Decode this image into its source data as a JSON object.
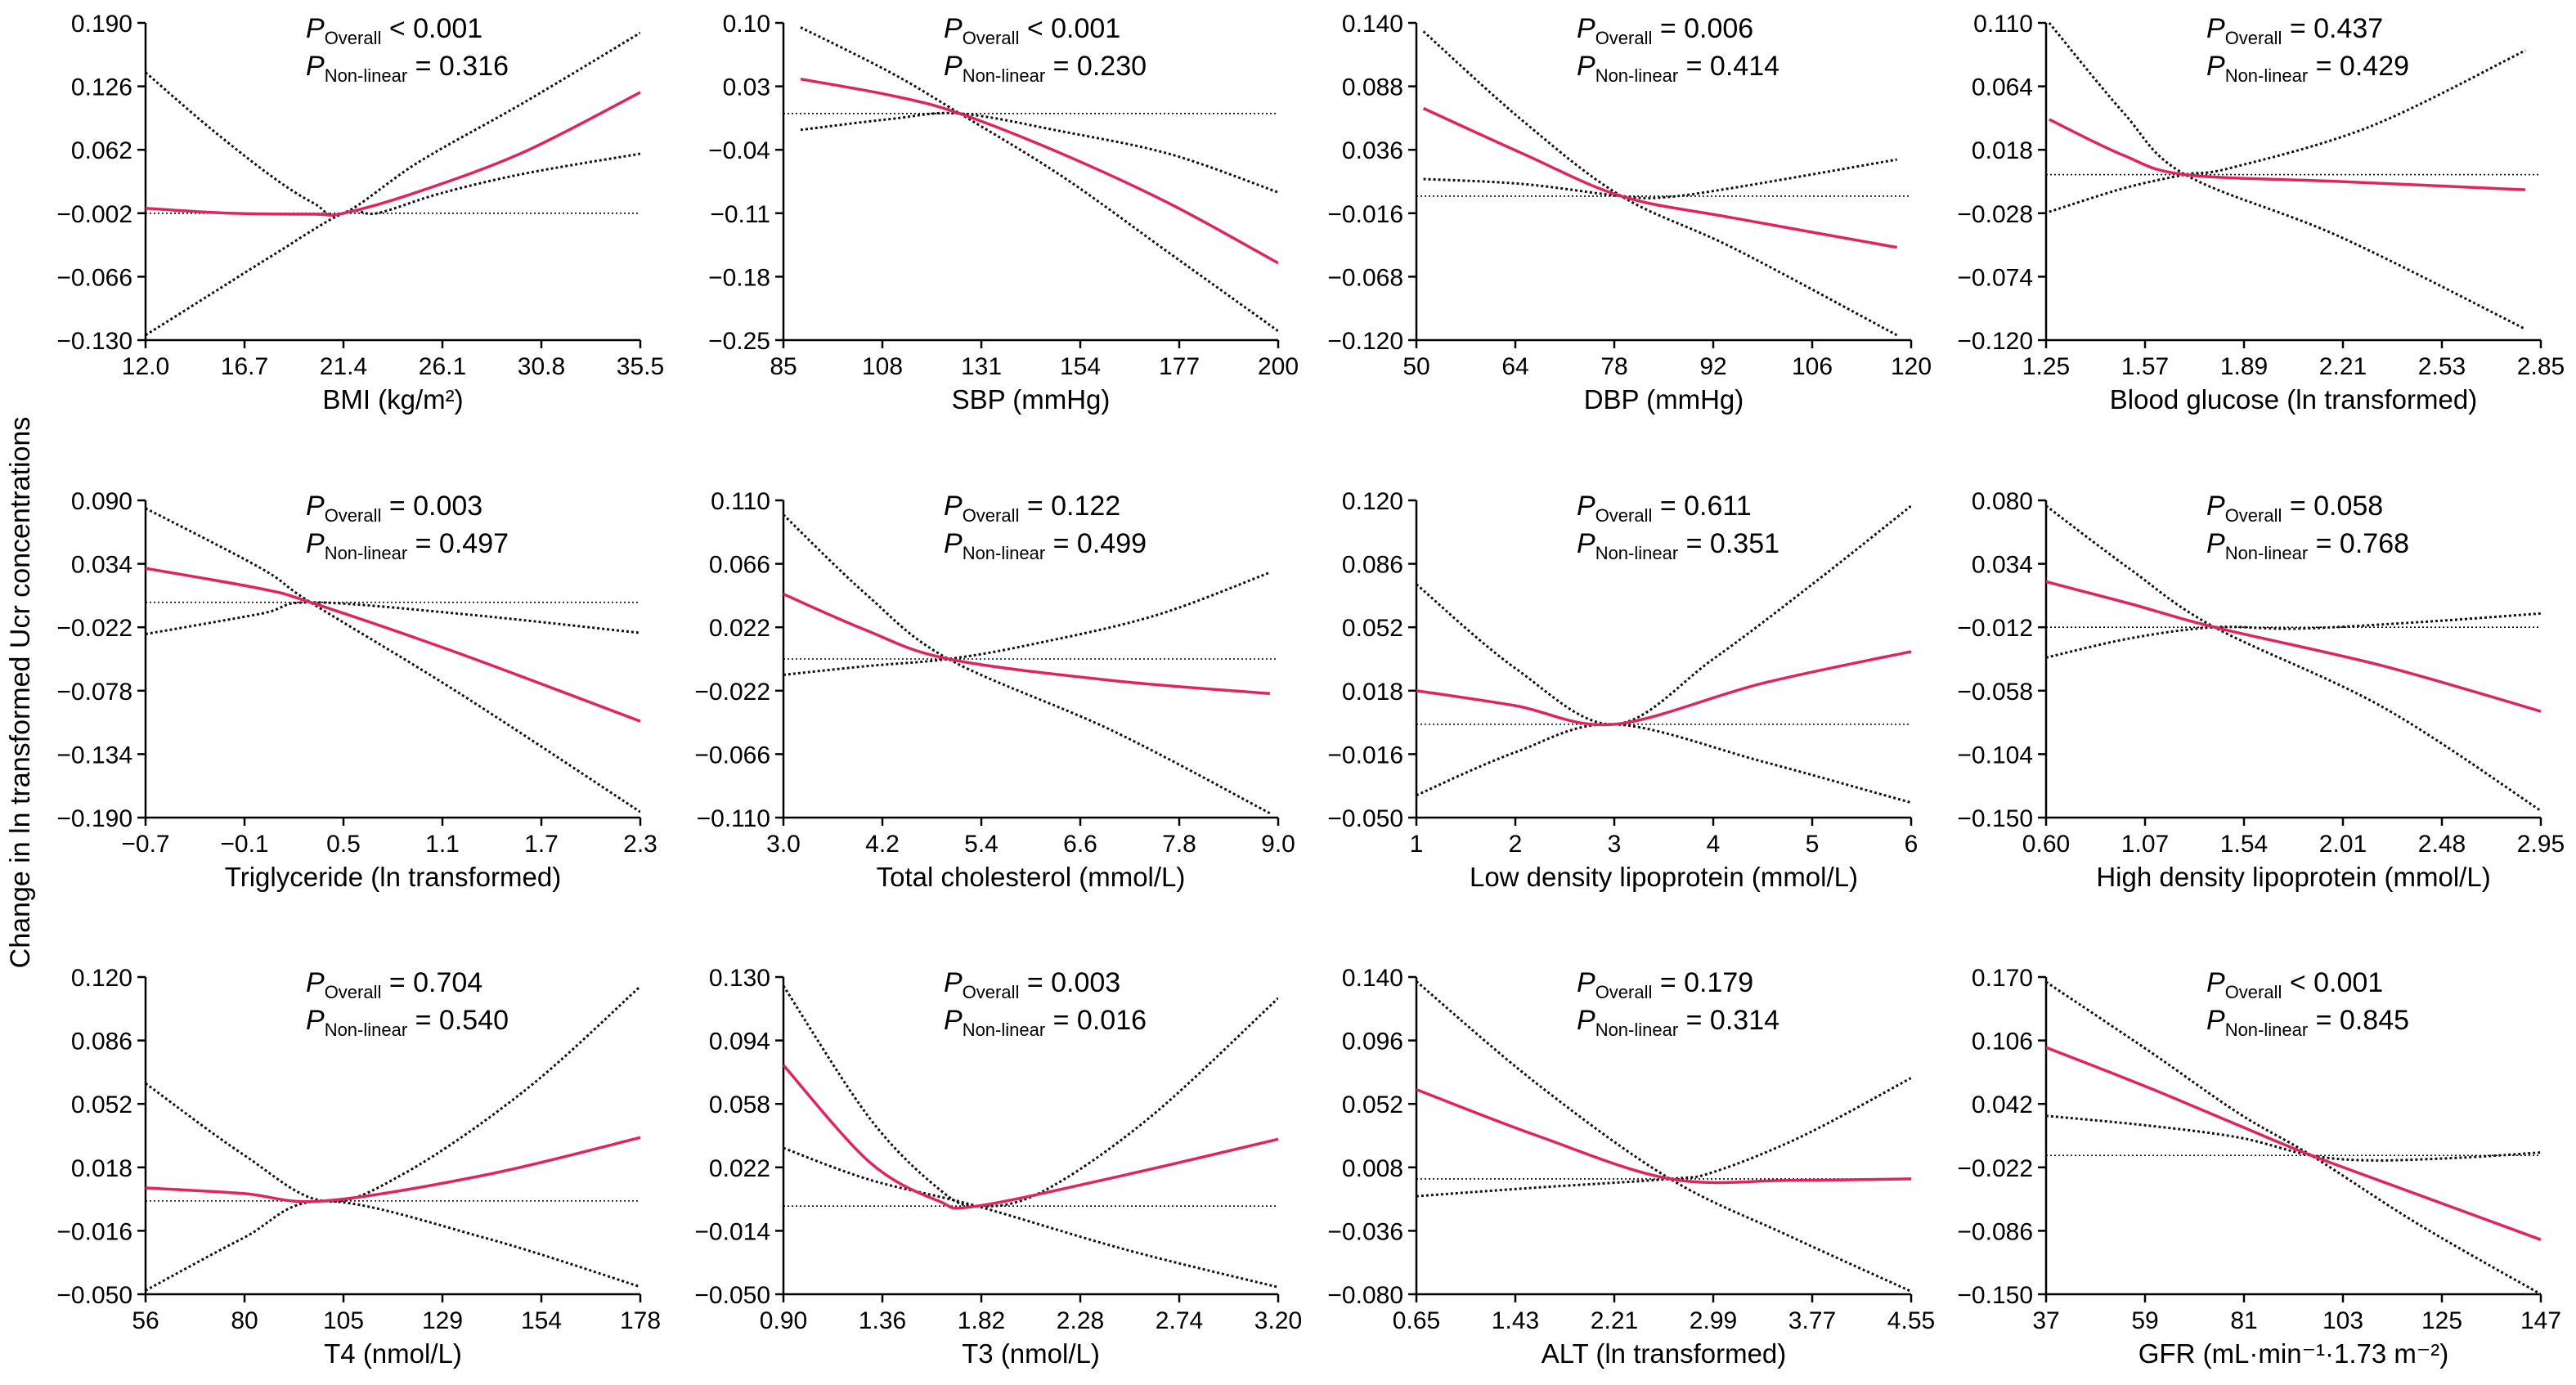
{
  "figure": {
    "ylabel": "Change in ln transformed Ucr concentrations"
  },
  "chart_data": [
    {
      "type": "line",
      "xlabel": "BMI (kg/m²)",
      "xticks": [
        "12.0",
        "16.7",
        "21.4",
        "26.1",
        "30.8",
        "35.5"
      ],
      "xlim": [
        12.0,
        35.5
      ],
      "yticks": [
        "0.190",
        "0.126",
        "0.062",
        "−0.002",
        "−0.066",
        "−0.130"
      ],
      "ylim": [
        -0.13,
        0.19
      ],
      "ref_y": -0.002,
      "p_overall": "< 0.001",
      "p_nonlinear": "= 0.316",
      "curves": {
        "estimate": [
          [
            12,
            0.003
          ],
          [
            16,
            -0.002
          ],
          [
            20,
            -0.003
          ],
          [
            21.4,
            -0.002
          ],
          [
            25,
            0.02
          ],
          [
            30,
            0.06
          ],
          [
            35.5,
            0.12
          ]
        ],
        "ci_upper": [
          [
            12,
            0.14
          ],
          [
            15,
            0.085
          ],
          [
            18,
            0.035
          ],
          [
            20,
            0.008
          ],
          [
            21.4,
            -0.002
          ],
          [
            25,
            0.05
          ],
          [
            30,
            0.11
          ],
          [
            35.5,
            0.18
          ]
        ],
        "ci_lower": [
          [
            12,
            -0.125
          ],
          [
            15,
            -0.085
          ],
          [
            18,
            -0.045
          ],
          [
            21.4,
            -0.002
          ],
          [
            23,
            -0.002
          ],
          [
            26,
            0.018
          ],
          [
            30,
            0.038
          ],
          [
            35.5,
            0.058
          ]
        ]
      }
    },
    {
      "type": "line",
      "xlabel": "SBP (mmHg)",
      "xticks": [
        "85",
        "108",
        "131",
        "154",
        "177",
        "200"
      ],
      "xlim": [
        85,
        200
      ],
      "yticks": [
        "0.10",
        "0.03",
        "−0.04",
        "−0.11",
        "−0.18",
        "−0.25"
      ],
      "ylim": [
        -0.25,
        0.1
      ],
      "ref_y": 0.0,
      "p_overall": "< 0.001",
      "p_nonlinear": "= 0.230",
      "curves": {
        "estimate": [
          [
            89,
            0.038
          ],
          [
            110,
            0.02
          ],
          [
            126,
            0.0
          ],
          [
            150,
            -0.045
          ],
          [
            175,
            -0.1
          ],
          [
            200,
            -0.165
          ]
        ],
        "ci_upper": [
          [
            89,
            -0.018
          ],
          [
            110,
            -0.006
          ],
          [
            126,
            0.0
          ],
          [
            150,
            -0.02
          ],
          [
            175,
            -0.045
          ],
          [
            200,
            -0.087
          ]
        ],
        "ci_lower": [
          [
            89,
            0.095
          ],
          [
            110,
            0.045
          ],
          [
            126,
            0.0
          ],
          [
            150,
            -0.07
          ],
          [
            175,
            -0.155
          ],
          [
            200,
            -0.24
          ]
        ]
      }
    },
    {
      "type": "line",
      "xlabel": "DBP (mmHg)",
      "xticks": [
        "50",
        "64",
        "78",
        "92",
        "106",
        "120"
      ],
      "xlim": [
        50,
        120
      ],
      "yticks": [
        "0.140",
        "0.088",
        "0.036",
        "−0.016",
        "−0.068",
        "−0.120"
      ],
      "ylim": [
        -0.12,
        0.14
      ],
      "ref_y": -0.002,
      "p_overall": "= 0.006",
      "p_nonlinear": "= 0.414",
      "curves": {
        "estimate": [
          [
            51,
            0.07
          ],
          [
            65,
            0.033
          ],
          [
            79,
            -0.002
          ],
          [
            95,
            -0.02
          ],
          [
            118,
            -0.044
          ]
        ],
        "ci_upper": [
          [
            51,
            0.012
          ],
          [
            65,
            0.008
          ],
          [
            79,
            -0.002
          ],
          [
            85,
            -0.003
          ],
          [
            95,
            0.005
          ],
          [
            118,
            0.028
          ]
        ],
        "ci_lower": [
          [
            51,
            0.133
          ],
          [
            65,
            0.06
          ],
          [
            79,
            -0.002
          ],
          [
            95,
            -0.045
          ],
          [
            118,
            -0.116
          ]
        ]
      }
    },
    {
      "type": "line",
      "xlabel": "Blood glucose (ln transformed)",
      "xticks": [
        "1.25",
        "1.57",
        "1.89",
        "2.21",
        "2.53",
        "2.85"
      ],
      "xlim": [
        1.25,
        2.85
      ],
      "yticks": [
        "0.110",
        "0.064",
        "0.018",
        "−0.028",
        "−0.074",
        "−0.120"
      ],
      "ylim": [
        -0.12,
        0.11
      ],
      "ref_y": 0.0,
      "p_overall": "= 0.437",
      "p_nonlinear": "= 0.429",
      "curves": {
        "estimate": [
          [
            1.26,
            0.04
          ],
          [
            1.5,
            0.014
          ],
          [
            1.7,
            0.0
          ],
          [
            2.2,
            -0.005
          ],
          [
            2.8,
            -0.011
          ]
        ],
        "ci_upper": [
          [
            1.26,
            -0.027
          ],
          [
            1.5,
            -0.01
          ],
          [
            1.7,
            0.0
          ],
          [
            1.85,
            0.005
          ],
          [
            2.3,
            0.035
          ],
          [
            2.8,
            0.09
          ]
        ],
        "ci_lower": [
          [
            1.26,
            0.11
          ],
          [
            1.5,
            0.045
          ],
          [
            1.7,
            0.0
          ],
          [
            2.2,
            -0.045
          ],
          [
            2.8,
            -0.112
          ]
        ]
      }
    },
    {
      "type": "line",
      "xlabel": "Triglyceride (ln transformed)",
      "xticks": [
        "−0.7",
        "−0.1",
        "0.5",
        "1.1",
        "1.7",
        "2.3"
      ],
      "xlim": [
        -0.7,
        2.3
      ],
      "yticks": [
        "0.090",
        "0.034",
        "−0.022",
        "−0.078",
        "−0.134",
        "−0.190"
      ],
      "ylim": [
        -0.19,
        0.09
      ],
      "ref_y": 0.0,
      "p_overall": "= 0.003",
      "p_nonlinear": "= 0.497",
      "curves": {
        "estimate": [
          [
            -0.7,
            0.03
          ],
          [
            0.0,
            0.012
          ],
          [
            0.3,
            0.0
          ],
          [
            1.2,
            -0.045
          ],
          [
            2.3,
            -0.105
          ]
        ],
        "ci_upper": [
          [
            -0.7,
            -0.028
          ],
          [
            0.0,
            -0.01
          ],
          [
            0.3,
            0.0
          ],
          [
            1.2,
            -0.01
          ],
          [
            2.3,
            -0.027
          ]
        ],
        "ci_lower": [
          [
            -0.7,
            0.083
          ],
          [
            0.0,
            0.03
          ],
          [
            0.3,
            0.0
          ],
          [
            1.2,
            -0.08
          ],
          [
            2.3,
            -0.185
          ]
        ]
      }
    },
    {
      "type": "line",
      "xlabel": "Total cholesterol (mmol/L)",
      "xticks": [
        "3.0",
        "4.2",
        "5.4",
        "6.6",
        "7.8",
        "9.0"
      ],
      "xlim": [
        3.0,
        9.0
      ],
      "yticks": [
        "0.110",
        "0.066",
        "0.022",
        "−0.022",
        "−0.066",
        "−0.110"
      ],
      "ylim": [
        -0.11,
        0.11
      ],
      "ref_y": 0.0,
      "p_overall": "= 0.122",
      "p_nonlinear": "= 0.499",
      "curves": {
        "estimate": [
          [
            3.0,
            0.045
          ],
          [
            4.0,
            0.02
          ],
          [
            5.0,
            0.0
          ],
          [
            7.0,
            -0.015
          ],
          [
            8.9,
            -0.024
          ]
        ],
        "ci_upper": [
          [
            3.0,
            -0.011
          ],
          [
            4.0,
            -0.005
          ],
          [
            5.0,
            0.0
          ],
          [
            6.0,
            0.01
          ],
          [
            7.5,
            0.03
          ],
          [
            8.9,
            0.06
          ]
        ],
        "ci_lower": [
          [
            3.0,
            0.1
          ],
          [
            4.0,
            0.045
          ],
          [
            5.0,
            0.0
          ],
          [
            7.0,
            -0.05
          ],
          [
            8.9,
            -0.107
          ]
        ]
      }
    },
    {
      "type": "line",
      "xlabel": "Low density lipoprotein (mmol/L)",
      "xticks": [
        "1",
        "2",
        "3",
        "4",
        "5",
        "6"
      ],
      "xlim": [
        1,
        6
      ],
      "yticks": [
        "0.120",
        "0.086",
        "0.052",
        "0.018",
        "−0.016",
        "−0.050"
      ],
      "ylim": [
        -0.05,
        0.12
      ],
      "ref_y": 0.0,
      "p_overall": "= 0.611",
      "p_nonlinear": "= 0.351",
      "curves": {
        "estimate": [
          [
            1.0,
            0.018
          ],
          [
            2.0,
            0.01
          ],
          [
            3.0,
            0.0
          ],
          [
            4.5,
            0.022
          ],
          [
            6.0,
            0.039
          ]
        ],
        "ci_upper": [
          [
            1.0,
            0.075
          ],
          [
            2.0,
            0.03
          ],
          [
            3.0,
            0.0
          ],
          [
            4.0,
            0.035
          ],
          [
            5.0,
            0.075
          ],
          [
            6.0,
            0.117
          ]
        ],
        "ci_lower": [
          [
            1.0,
            -0.038
          ],
          [
            2.0,
            -0.015
          ],
          [
            3.0,
            0.0
          ],
          [
            4.5,
            -0.02
          ],
          [
            6.0,
            -0.042
          ]
        ]
      }
    },
    {
      "type": "line",
      "xlabel": "High density lipoprotein (mmol/L)",
      "xticks": [
        "0.60",
        "1.07",
        "1.54",
        "2.01",
        "2.48",
        "2.95"
      ],
      "xlim": [
        0.6,
        2.95
      ],
      "yticks": [
        "0.080",
        "0.034",
        "−0.012",
        "−0.058",
        "−0.104",
        "−0.150"
      ],
      "ylim": [
        -0.15,
        0.08
      ],
      "ref_y": -0.012,
      "p_overall": "= 0.058",
      "p_nonlinear": "= 0.768",
      "curves": {
        "estimate": [
          [
            0.6,
            0.021
          ],
          [
            1.0,
            0.005
          ],
          [
            1.4,
            -0.012
          ],
          [
            2.2,
            -0.04
          ],
          [
            2.95,
            -0.073
          ]
        ],
        "ci_upper": [
          [
            0.6,
            -0.034
          ],
          [
            1.0,
            -0.02
          ],
          [
            1.4,
            -0.012
          ],
          [
            1.8,
            -0.013
          ],
          [
            2.4,
            -0.008
          ],
          [
            2.95,
            -0.002
          ]
        ],
        "ci_lower": [
          [
            0.6,
            0.076
          ],
          [
            1.0,
            0.03
          ],
          [
            1.4,
            -0.012
          ],
          [
            2.2,
            -0.07
          ],
          [
            2.95,
            -0.145
          ]
        ]
      }
    },
    {
      "type": "line",
      "xlabel": "T4 (nmol/L)",
      "xticks": [
        "56",
        "80",
        "105",
        "129",
        "154",
        "178"
      ],
      "xlim": [
        56,
        178
      ],
      "yticks": [
        "0.120",
        "0.086",
        "0.052",
        "0.018",
        "−0.016",
        "−0.050"
      ],
      "ylim": [
        -0.05,
        0.12
      ],
      "ref_y": 0.0,
      "p_overall": "= 0.704",
      "p_nonlinear": "= 0.540",
      "curves": {
        "estimate": [
          [
            56,
            0.007
          ],
          [
            80,
            0.004
          ],
          [
            100,
            0.0
          ],
          [
            140,
            0.014
          ],
          [
            178,
            0.034
          ]
        ],
        "ci_upper": [
          [
            56,
            0.063
          ],
          [
            80,
            0.025
          ],
          [
            100,
            0.0
          ],
          [
            120,
            0.015
          ],
          [
            150,
            0.06
          ],
          [
            178,
            0.115
          ]
        ],
        "ci_lower": [
          [
            56,
            -0.048
          ],
          [
            80,
            -0.02
          ],
          [
            100,
            0.0
          ],
          [
            140,
            -0.02
          ],
          [
            178,
            -0.046
          ]
        ]
      }
    },
    {
      "type": "line",
      "xlabel": "T3 (nmol/L)",
      "xticks": [
        "0.90",
        "1.36",
        "1.82",
        "2.28",
        "2.74",
        "3.20"
      ],
      "xlim": [
        0.9,
        3.2
      ],
      "yticks": [
        "0.130",
        "0.094",
        "0.058",
        "0.022",
        "−0.014",
        "−0.050"
      ],
      "ylim": [
        -0.05,
        0.13
      ],
      "ref_y": 0.0,
      "p_overall": "= 0.003",
      "p_nonlinear": "= 0.016",
      "curves": {
        "estimate": [
          [
            0.9,
            0.08
          ],
          [
            1.3,
            0.025
          ],
          [
            1.62,
            0.003
          ],
          [
            1.8,
            0.0
          ],
          [
            2.5,
            0.018
          ],
          [
            3.2,
            0.038
          ]
        ],
        "ci_upper": [
          [
            0.9,
            0.125
          ],
          [
            1.3,
            0.05
          ],
          [
            1.62,
            0.01
          ],
          [
            1.8,
            0.0
          ],
          [
            2.1,
            0.008
          ],
          [
            2.6,
            0.05
          ],
          [
            3.2,
            0.118
          ]
        ],
        "ci_lower": [
          [
            0.9,
            0.033
          ],
          [
            1.3,
            0.015
          ],
          [
            1.8,
            0.0
          ],
          [
            2.5,
            -0.025
          ],
          [
            3.2,
            -0.046
          ]
        ]
      }
    },
    {
      "type": "line",
      "xlabel": "ALT (ln transformed)",
      "xticks": [
        "0.65",
        "1.43",
        "2.21",
        "2.99",
        "3.77",
        "4.55"
      ],
      "xlim": [
        0.65,
        4.55
      ],
      "yticks": [
        "0.140",
        "0.096",
        "0.052",
        "0.008",
        "−0.036",
        "−0.080"
      ],
      "ylim": [
        -0.08,
        0.14
      ],
      "ref_y": 0.0,
      "p_overall": "= 0.179",
      "p_nonlinear": "= 0.314",
      "curves": {
        "estimate": [
          [
            0.65,
            0.062
          ],
          [
            1.6,
            0.03
          ],
          [
            2.65,
            0.0
          ],
          [
            3.6,
            -0.001
          ],
          [
            4.55,
            0.0
          ]
        ],
        "ci_upper": [
          [
            0.65,
            -0.012
          ],
          [
            1.6,
            -0.006
          ],
          [
            2.65,
            0.0
          ],
          [
            3.0,
            0.005
          ],
          [
            3.7,
            0.03
          ],
          [
            4.55,
            0.07
          ]
        ],
        "ci_lower": [
          [
            0.65,
            0.137
          ],
          [
            1.6,
            0.066
          ],
          [
            2.65,
            0.0
          ],
          [
            3.6,
            -0.04
          ],
          [
            4.55,
            -0.078
          ]
        ]
      }
    },
    {
      "type": "line",
      "xlabel": "GFR (mL·min⁻¹·1.73 m⁻²)",
      "xticks": [
        "37",
        "59",
        "81",
        "103",
        "125",
        "147"
      ],
      "xlim": [
        37,
        147
      ],
      "yticks": [
        "0.170",
        "0.106",
        "0.042",
        "−0.022",
        "−0.086",
        "−0.150"
      ],
      "ylim": [
        -0.15,
        0.17
      ],
      "ref_y": -0.01,
      "p_overall": "< 0.001",
      "p_nonlinear": "= 0.845",
      "curves": {
        "estimate": [
          [
            37,
            0.099
          ],
          [
            60,
            0.058
          ],
          [
            80,
            0.02
          ],
          [
            96,
            -0.01
          ],
          [
            120,
            -0.05
          ],
          [
            147,
            -0.095
          ]
        ],
        "ci_upper": [
          [
            37,
            0.03
          ],
          [
            60,
            0.02
          ],
          [
            80,
            0.008
          ],
          [
            96,
            -0.01
          ],
          [
            110,
            -0.015
          ],
          [
            130,
            -0.012
          ],
          [
            147,
            -0.007
          ]
        ],
        "ci_lower": [
          [
            37,
            0.165
          ],
          [
            60,
            0.095
          ],
          [
            80,
            0.032
          ],
          [
            96,
            -0.01
          ],
          [
            120,
            -0.08
          ],
          [
            147,
            -0.15
          ]
        ]
      }
    }
  ]
}
